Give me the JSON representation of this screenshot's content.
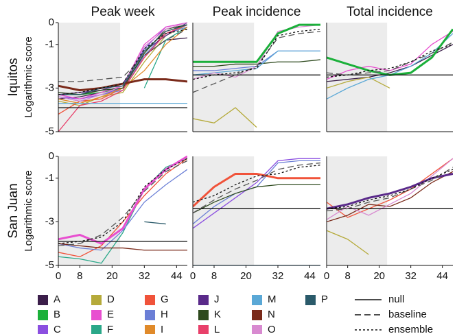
{
  "chart_data": [
    {
      "type": "line",
      "title": "Peak week",
      "row_label": "Iquitos",
      "ylabel": "Logarithmic score",
      "x": [
        0,
        8,
        16,
        24,
        32,
        40,
        48
      ],
      "xlim": [
        0,
        48
      ],
      "ylim": [
        -5,
        0
      ],
      "yticks": [
        0,
        -1,
        -3,
        -5
      ],
      "shaded_xlim": [
        0,
        23
      ],
      "series": [
        {
          "name": "A",
          "color": "#3b1e4a",
          "style": "solid",
          "values": [
            -3.5,
            -3.4,
            -3.2,
            -2.9,
            -1.5,
            -0.8,
            -0.7
          ]
        },
        {
          "name": "B",
          "color": "#1bb03a",
          "style": "solid",
          "values": [
            -3.3,
            -3.3,
            -3.2,
            -3.0,
            -1.4,
            -0.3,
            -0.1
          ]
        },
        {
          "name": "C",
          "color": "#8b4fe0",
          "style": "solid",
          "values": [
            -3.4,
            -3.5,
            -3.3,
            -3.0,
            -1.2,
            -0.2,
            0
          ]
        },
        {
          "name": "D",
          "color": "#b5aa3a",
          "style": "solid",
          "values": [
            -3.6,
            -3.8,
            -3.4,
            -3.2,
            -1.8,
            -0.6,
            -0.1
          ]
        },
        {
          "name": "E",
          "color": "#e84fd0",
          "style": "solid",
          "values": [
            -3.3,
            -3.5,
            -3.2,
            -2.9,
            -1.0,
            -0.2,
            0
          ]
        },
        {
          "name": "F",
          "color": "#2aa889",
          "style": "solid",
          "values": [
            null,
            null,
            null,
            null,
            -3.0,
            -0.8,
            -0.2
          ]
        },
        {
          "name": "G",
          "color": "#f0533a",
          "style": "solid",
          "values": [
            -4.2,
            -3.6,
            -3.5,
            -3.0,
            -1.6,
            -0.4,
            -0.1
          ]
        },
        {
          "name": "H",
          "color": "#6b7fd6",
          "style": "solid",
          "values": [
            -3.4,
            -3.6,
            -3.3,
            -3.1,
            -1.5,
            -0.5,
            -0.2
          ]
        },
        {
          "name": "I",
          "color": "#e08a2a",
          "style": "solid",
          "values": [
            -3.5,
            -3.7,
            -3.4,
            -3.0,
            -2.2,
            -1.0,
            -0.2
          ]
        },
        {
          "name": "J",
          "color": "#5a2a8a",
          "style": "solid",
          "values": [
            -3.3,
            -3.2,
            -3.1,
            -2.8,
            -1.3,
            -0.6,
            0
          ]
        },
        {
          "name": "K",
          "color": "#2e4a1e",
          "style": "solid",
          "values": [
            -3.2,
            -3.3,
            -3.1,
            -3.0,
            -1.4,
            -0.3,
            -0.1
          ]
        },
        {
          "name": "L",
          "color": "#e8406a",
          "style": "solid",
          "values": [
            -5,
            -3.8,
            -3.6,
            -3.1,
            -1.6,
            -0.5,
            -0.1
          ]
        },
        {
          "name": "M",
          "color": "#5aa8d6",
          "style": "solid",
          "values": [
            -3.7,
            -3.7,
            -3.7,
            -3.7,
            -3.7,
            -3.7,
            -3.7
          ]
        },
        {
          "name": "N",
          "color": "#7a2a1a",
          "style": "solid",
          "line_width": 3,
          "values": [
            -2.9,
            -3.1,
            -3.0,
            -2.8,
            -2.6,
            -2.6,
            -2.7
          ]
        },
        {
          "name": "O",
          "color": "#d88ad0",
          "style": "solid",
          "values": [
            -3.4,
            -3.6,
            -3.3,
            -2.9,
            -1.1,
            -0.3,
            0
          ]
        },
        {
          "name": "P",
          "color": "#2a5a6a",
          "style": "solid",
          "values": [
            -3.3,
            -3.3,
            -3.0,
            -2.9,
            -1.3,
            -0.4,
            -0.1
          ]
        },
        {
          "name": "null",
          "color": "#111111",
          "style": "solid",
          "values": [
            -3.9,
            -3.9,
            -3.9,
            -3.9,
            -3.9,
            -3.9,
            -3.9
          ]
        },
        {
          "name": "baseline",
          "color": "#555555",
          "style": "dashed",
          "values": [
            -2.7,
            -2.7,
            -2.6,
            -2.5,
            -1.5,
            -0.8,
            -0.3
          ]
        },
        {
          "name": "ensemble",
          "color": "#111111",
          "style": "dotted",
          "values": [
            -3.3,
            -3.2,
            -3.0,
            -2.8,
            -1.2,
            -0.5,
            -0.3
          ]
        }
      ]
    },
    {
      "type": "line",
      "title": "Peak incidence",
      "x": [
        0,
        8,
        16,
        24,
        32,
        40,
        48
      ],
      "xlim": [
        0,
        48
      ],
      "ylim": [
        -5,
        0
      ],
      "shaded_xlim": [
        0,
        23
      ],
      "series": [
        {
          "name": "D",
          "color": "#b5aa3a",
          "style": "solid",
          "values": [
            -4.4,
            -4.6,
            -3.9,
            -4.8,
            null,
            null,
            null
          ]
        },
        {
          "name": "H",
          "color": "#6b7fd6",
          "style": "solid",
          "values": [
            -2.2,
            -2.2,
            -2.1,
            -2.0,
            -1.3,
            -1.3,
            -1.3
          ]
        },
        {
          "name": "K",
          "color": "#2e4a1e",
          "style": "solid",
          "values": [
            -2.0,
            -2.0,
            -1.9,
            -1.9,
            -1.8,
            -1.8,
            -1.7
          ]
        },
        {
          "name": "M",
          "color": "#5aa8d6",
          "style": "solid",
          "values": [
            -2.4,
            -2.3,
            -2.2,
            -2.1,
            -1.3,
            -1.3,
            -1.3
          ]
        },
        {
          "name": "O",
          "color": "#d88ad0",
          "style": "solid",
          "values": [
            -2.6,
            -2.3,
            -2.5,
            -2.0,
            -0.4,
            -0.2,
            -0.1
          ]
        },
        {
          "name": "B",
          "color": "#1bb03a",
          "style": "solid",
          "line_width": 3,
          "values": [
            -1.8,
            -1.8,
            -1.8,
            -1.8,
            -0.5,
            -0.1,
            -0.1
          ]
        },
        {
          "name": "null",
          "color": "#111111",
          "style": "solid",
          "values": [
            -2.4,
            -2.4,
            -2.4,
            -2.4,
            -2.4,
            -2.4,
            -2.4
          ]
        },
        {
          "name": "baseline",
          "color": "#555555",
          "style": "dashed",
          "values": [
            -3.2,
            -2.8,
            -2.4,
            -2.0,
            -0.7,
            -0.5,
            -0.4
          ]
        },
        {
          "name": "ensemble",
          "color": "#111111",
          "style": "dotted",
          "values": [
            -2.6,
            -2.4,
            -2.3,
            -2.1,
            -0.6,
            -0.4,
            -0.3
          ]
        }
      ]
    },
    {
      "type": "line",
      "title": "Total incidence",
      "x": [
        0,
        8,
        16,
        24,
        32,
        40,
        48
      ],
      "xlim": [
        0,
        48
      ],
      "ylim": [
        -5,
        0
      ],
      "shaded_xlim": [
        0,
        23
      ],
      "series": [
        {
          "name": "A",
          "color": "#3b1e4a",
          "style": "solid",
          "values": [
            -2.7,
            -2.6,
            -2.5,
            -2.3,
            -2.0,
            -1.5,
            -1.0
          ]
        },
        {
          "name": "D",
          "color": "#b5aa3a",
          "style": "solid",
          "values": [
            -3.0,
            -2.7,
            -2.5,
            -3.0,
            null,
            null,
            null
          ]
        },
        {
          "name": "E",
          "color": "#e84fd0",
          "style": "solid",
          "values": [
            -2.6,
            -2.2,
            -2.0,
            -2.2,
            -1.9,
            -1.0,
            -0.4
          ]
        },
        {
          "name": "M",
          "color": "#5aa8d6",
          "style": "solid",
          "values": [
            -3.5,
            -3.0,
            -2.6,
            -2.4,
            -2.0,
            -1.4,
            -0.5
          ]
        },
        {
          "name": "B",
          "color": "#1bb03a",
          "style": "solid",
          "line_width": 3,
          "values": [
            -1.6,
            -1.9,
            -2.2,
            -2.4,
            -2.3,
            -1.6,
            -0.3
          ]
        },
        {
          "name": "null",
          "color": "#111111",
          "style": "solid",
          "values": [
            -2.4,
            -2.4,
            -2.4,
            -2.4,
            -2.4,
            -2.4,
            -2.4
          ]
        },
        {
          "name": "baseline",
          "color": "#555555",
          "style": "dashed",
          "values": [
            -2.3,
            -2.4,
            -2.3,
            -2.2,
            -1.8,
            -1.4,
            -0.9
          ]
        },
        {
          "name": "ensemble",
          "color": "#111111",
          "style": "dotted",
          "values": [
            -2.5,
            -2.4,
            -2.2,
            -2.1,
            -1.8,
            -1.3,
            -1.0
          ]
        }
      ]
    },
    {
      "type": "line",
      "row_label": "San Juan",
      "ylabel": "Logarithmic score",
      "x": [
        0,
        8,
        16,
        24,
        32,
        40,
        48
      ],
      "xlim": [
        0,
        48
      ],
      "ylim": [
        -5,
        0
      ],
      "yticks": [
        0,
        -1,
        -3,
        -5
      ],
      "xticks": [
        0,
        8,
        20,
        32,
        44
      ],
      "shaded_xlim": [
        0,
        23
      ],
      "series": [
        {
          "name": "F",
          "color": "#2aa889",
          "style": "solid",
          "values": [
            -4.6,
            -4.7,
            -4.9,
            -3.5,
            -1.5,
            -0.5,
            -0.1
          ]
        },
        {
          "name": "G",
          "color": "#f0533a",
          "style": "solid",
          "values": [
            -4.4,
            -4.6,
            -4.1,
            -3.0,
            -1.8,
            -0.8,
            -0.1
          ]
        },
        {
          "name": "H",
          "color": "#6b7fd6",
          "style": "solid",
          "values": [
            -4.0,
            -4.2,
            -4.3,
            -3.4,
            -2.1,
            -1.3,
            -0.6
          ]
        },
        {
          "name": "N",
          "color": "#7a2a1a",
          "style": "solid",
          "values": [
            -4.0,
            -4.1,
            -4.2,
            -4.2,
            -4.3,
            -4.3,
            -4.3
          ]
        },
        {
          "name": "P",
          "color": "#2a5a6a",
          "style": "solid",
          "values": [
            null,
            null,
            null,
            null,
            -3.0,
            -3.1,
            null
          ]
        },
        {
          "name": "E",
          "color": "#e84fd0",
          "style": "solid",
          "line_width": 3,
          "values": [
            -3.8,
            -3.6,
            -4.0,
            -3.3,
            -1.5,
            -0.6,
            0
          ]
        },
        {
          "name": "null",
          "color": "#111111",
          "style": "solid",
          "values": [
            -3.9,
            -3.9,
            -3.9,
            -3.9,
            -3.9,
            -3.9,
            -3.9
          ]
        },
        {
          "name": "baseline",
          "color": "#555555",
          "style": "dashed",
          "values": [
            -4.1,
            -4.0,
            -3.6,
            -2.8,
            -1.6,
            -0.7,
            -0.2
          ]
        },
        {
          "name": "ensemble",
          "color": "#111111",
          "style": "dotted",
          "values": [
            -4.0,
            -3.9,
            -3.7,
            -3.0,
            -1.4,
            -0.6,
            -0.1
          ]
        }
      ]
    },
    {
      "type": "line",
      "x": [
        0,
        8,
        16,
        24,
        32,
        40,
        48
      ],
      "xlim": [
        0,
        48
      ],
      "ylim": [
        -5,
        0
      ],
      "xticks": [
        0,
        8,
        20,
        32,
        44
      ],
      "shaded_xlim": [
        0,
        23
      ],
      "series": [
        {
          "name": "C",
          "color": "#8b4fe0",
          "style": "solid",
          "values": [
            -3.3,
            -2.6,
            -1.9,
            -1.2,
            -0.2,
            -0.1,
            -0.1
          ]
        },
        {
          "name": "H",
          "color": "#6b7fd6",
          "style": "solid",
          "values": [
            -3.1,
            -2.3,
            -1.7,
            -1.4,
            -0.3,
            -0.2,
            -0.2
          ]
        },
        {
          "name": "K",
          "color": "#2e4a1e",
          "style": "solid",
          "values": [
            -2.6,
            -2.1,
            -1.7,
            -1.4,
            -1.3,
            -1.3,
            -1.3
          ]
        },
        {
          "name": "M",
          "color": "#5aa8d6",
          "style": "solid",
          "values": [
            -5,
            -5,
            -5,
            -5,
            -5,
            -5,
            -5
          ]
        },
        {
          "name": "G",
          "color": "#f0533a",
          "style": "solid",
          "line_width": 3,
          "values": [
            -2.3,
            -1.4,
            -0.8,
            -0.8,
            -1.0,
            -1.0,
            -1.0
          ]
        },
        {
          "name": "null",
          "color": "#111111",
          "style": "solid",
          "values": [
            -2.4,
            -2.4,
            -2.4,
            -2.4,
            -2.4,
            -2.4,
            -2.4
          ]
        },
        {
          "name": "baseline",
          "color": "#555555",
          "style": "dashed",
          "values": [
            -2.6,
            -2.0,
            -1.5,
            -1.1,
            -0.6,
            -0.4,
            -0.3
          ]
        },
        {
          "name": "ensemble",
          "color": "#111111",
          "style": "dotted",
          "values": [
            -2.1,
            -1.8,
            -1.3,
            -0.9,
            -0.8,
            -0.5,
            -0.4
          ]
        }
      ]
    },
    {
      "type": "line",
      "x": [
        0,
        8,
        16,
        24,
        32,
        40,
        48
      ],
      "xlim": [
        0,
        48
      ],
      "ylim": [
        -5,
        0
      ],
      "xticks": [
        0,
        8,
        20,
        32,
        44
      ],
      "shaded_xlim": [
        0,
        23
      ],
      "series": [
        {
          "name": "D",
          "color": "#b5aa3a",
          "style": "solid",
          "values": [
            -3.4,
            -3.8,
            -4.5,
            null,
            null,
            null,
            null
          ]
        },
        {
          "name": "G",
          "color": "#f0533a",
          "style": "solid",
          "values": [
            -2.1,
            -2.8,
            -2.4,
            -2.0,
            -1.5,
            -0.8,
            -0.1
          ]
        },
        {
          "name": "N",
          "color": "#7a2a1a",
          "style": "solid",
          "values": [
            -3.0,
            -2.7,
            -2.2,
            -2.3,
            -1.9,
            -1.2,
            -0.7
          ]
        },
        {
          "name": "O",
          "color": "#d88ad0",
          "style": "solid",
          "values": [
            -2.9,
            -2.3,
            -2.7,
            -2.2,
            -1.7,
            -0.9,
            -0.1
          ]
        },
        {
          "name": "J",
          "color": "#5a2a8a",
          "style": "solid",
          "line_width": 3,
          "values": [
            -2.4,
            -2.2,
            -1.9,
            -1.7,
            -1.4,
            -1.0,
            -0.8
          ]
        },
        {
          "name": "null",
          "color": "#111111",
          "style": "solid",
          "values": [
            -2.4,
            -2.4,
            -2.4,
            -2.4,
            -2.4,
            -2.4,
            -2.4
          ]
        },
        {
          "name": "baseline",
          "color": "#555555",
          "style": "dashed",
          "values": [
            -2.5,
            -2.4,
            -2.1,
            -1.9,
            -1.5,
            -1.1,
            -0.5
          ]
        },
        {
          "name": "ensemble",
          "color": "#111111",
          "style": "dotted",
          "values": [
            -2.4,
            -2.3,
            -2.0,
            -1.8,
            -1.5,
            -1.0,
            -0.6
          ]
        }
      ]
    }
  ]
}
